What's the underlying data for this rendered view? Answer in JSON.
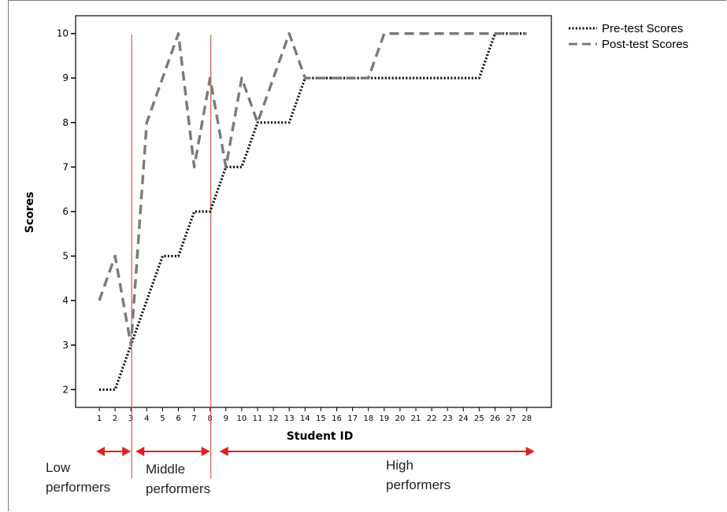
{
  "chart_data": {
    "type": "line",
    "title": "",
    "xlabel": "Student ID",
    "ylabel": "Scores",
    "x": [
      1,
      2,
      3,
      4,
      5,
      6,
      7,
      8,
      9,
      10,
      11,
      12,
      13,
      14,
      15,
      16,
      17,
      18,
      19,
      20,
      21,
      22,
      23,
      24,
      25,
      26,
      27,
      28
    ],
    "xticks": [
      "1",
      "2",
      "3",
      "4",
      "5",
      "6",
      "7",
      "8",
      "9",
      "10",
      "11",
      "12",
      "13",
      "14",
      "15",
      "16",
      "17",
      "18",
      "19",
      "20",
      "21",
      "22",
      "23",
      "24",
      "25",
      "26",
      "27",
      "28"
    ],
    "yticks": [
      "2",
      "3",
      "4",
      "5",
      "6",
      "7",
      "8",
      "9",
      "10"
    ],
    "ylim": [
      1.6,
      10.4
    ],
    "series": [
      {
        "name": "Pre-test Scores",
        "style": "dotted",
        "color": "#1a1a1a",
        "values": [
          2,
          2,
          3,
          4,
          5,
          5,
          6,
          6,
          7,
          7,
          8,
          8,
          8,
          9,
          9,
          9,
          9,
          9,
          9,
          9,
          9,
          9,
          9,
          9,
          9,
          10,
          10,
          10
        ]
      },
      {
        "name": "Post-test Scores",
        "style": "dashed",
        "color": "#7a7a7a",
        "values": [
          4,
          5,
          3,
          8,
          9,
          10,
          7,
          9,
          7,
          9,
          8,
          9,
          10,
          9,
          9,
          9,
          9,
          9,
          10,
          10,
          10,
          10,
          10,
          10,
          10,
          10,
          10,
          10
        ]
      }
    ],
    "vertical_lines": [
      3,
      8
    ],
    "vertical_line_color": "#d9534f",
    "arrow_color": "#e02020",
    "groups": [
      {
        "label_lines": [
          "Low",
          "performers"
        ],
        "from": 0.8,
        "to": 3
      },
      {
        "label_lines": [
          "Middle",
          "performers"
        ],
        "from": 3.3,
        "to": 8
      },
      {
        "label_lines": [
          "High",
          "performers"
        ],
        "from": 8.6,
        "to": 28.5
      }
    ],
    "legend_position": "top-right",
    "grid": false
  }
}
